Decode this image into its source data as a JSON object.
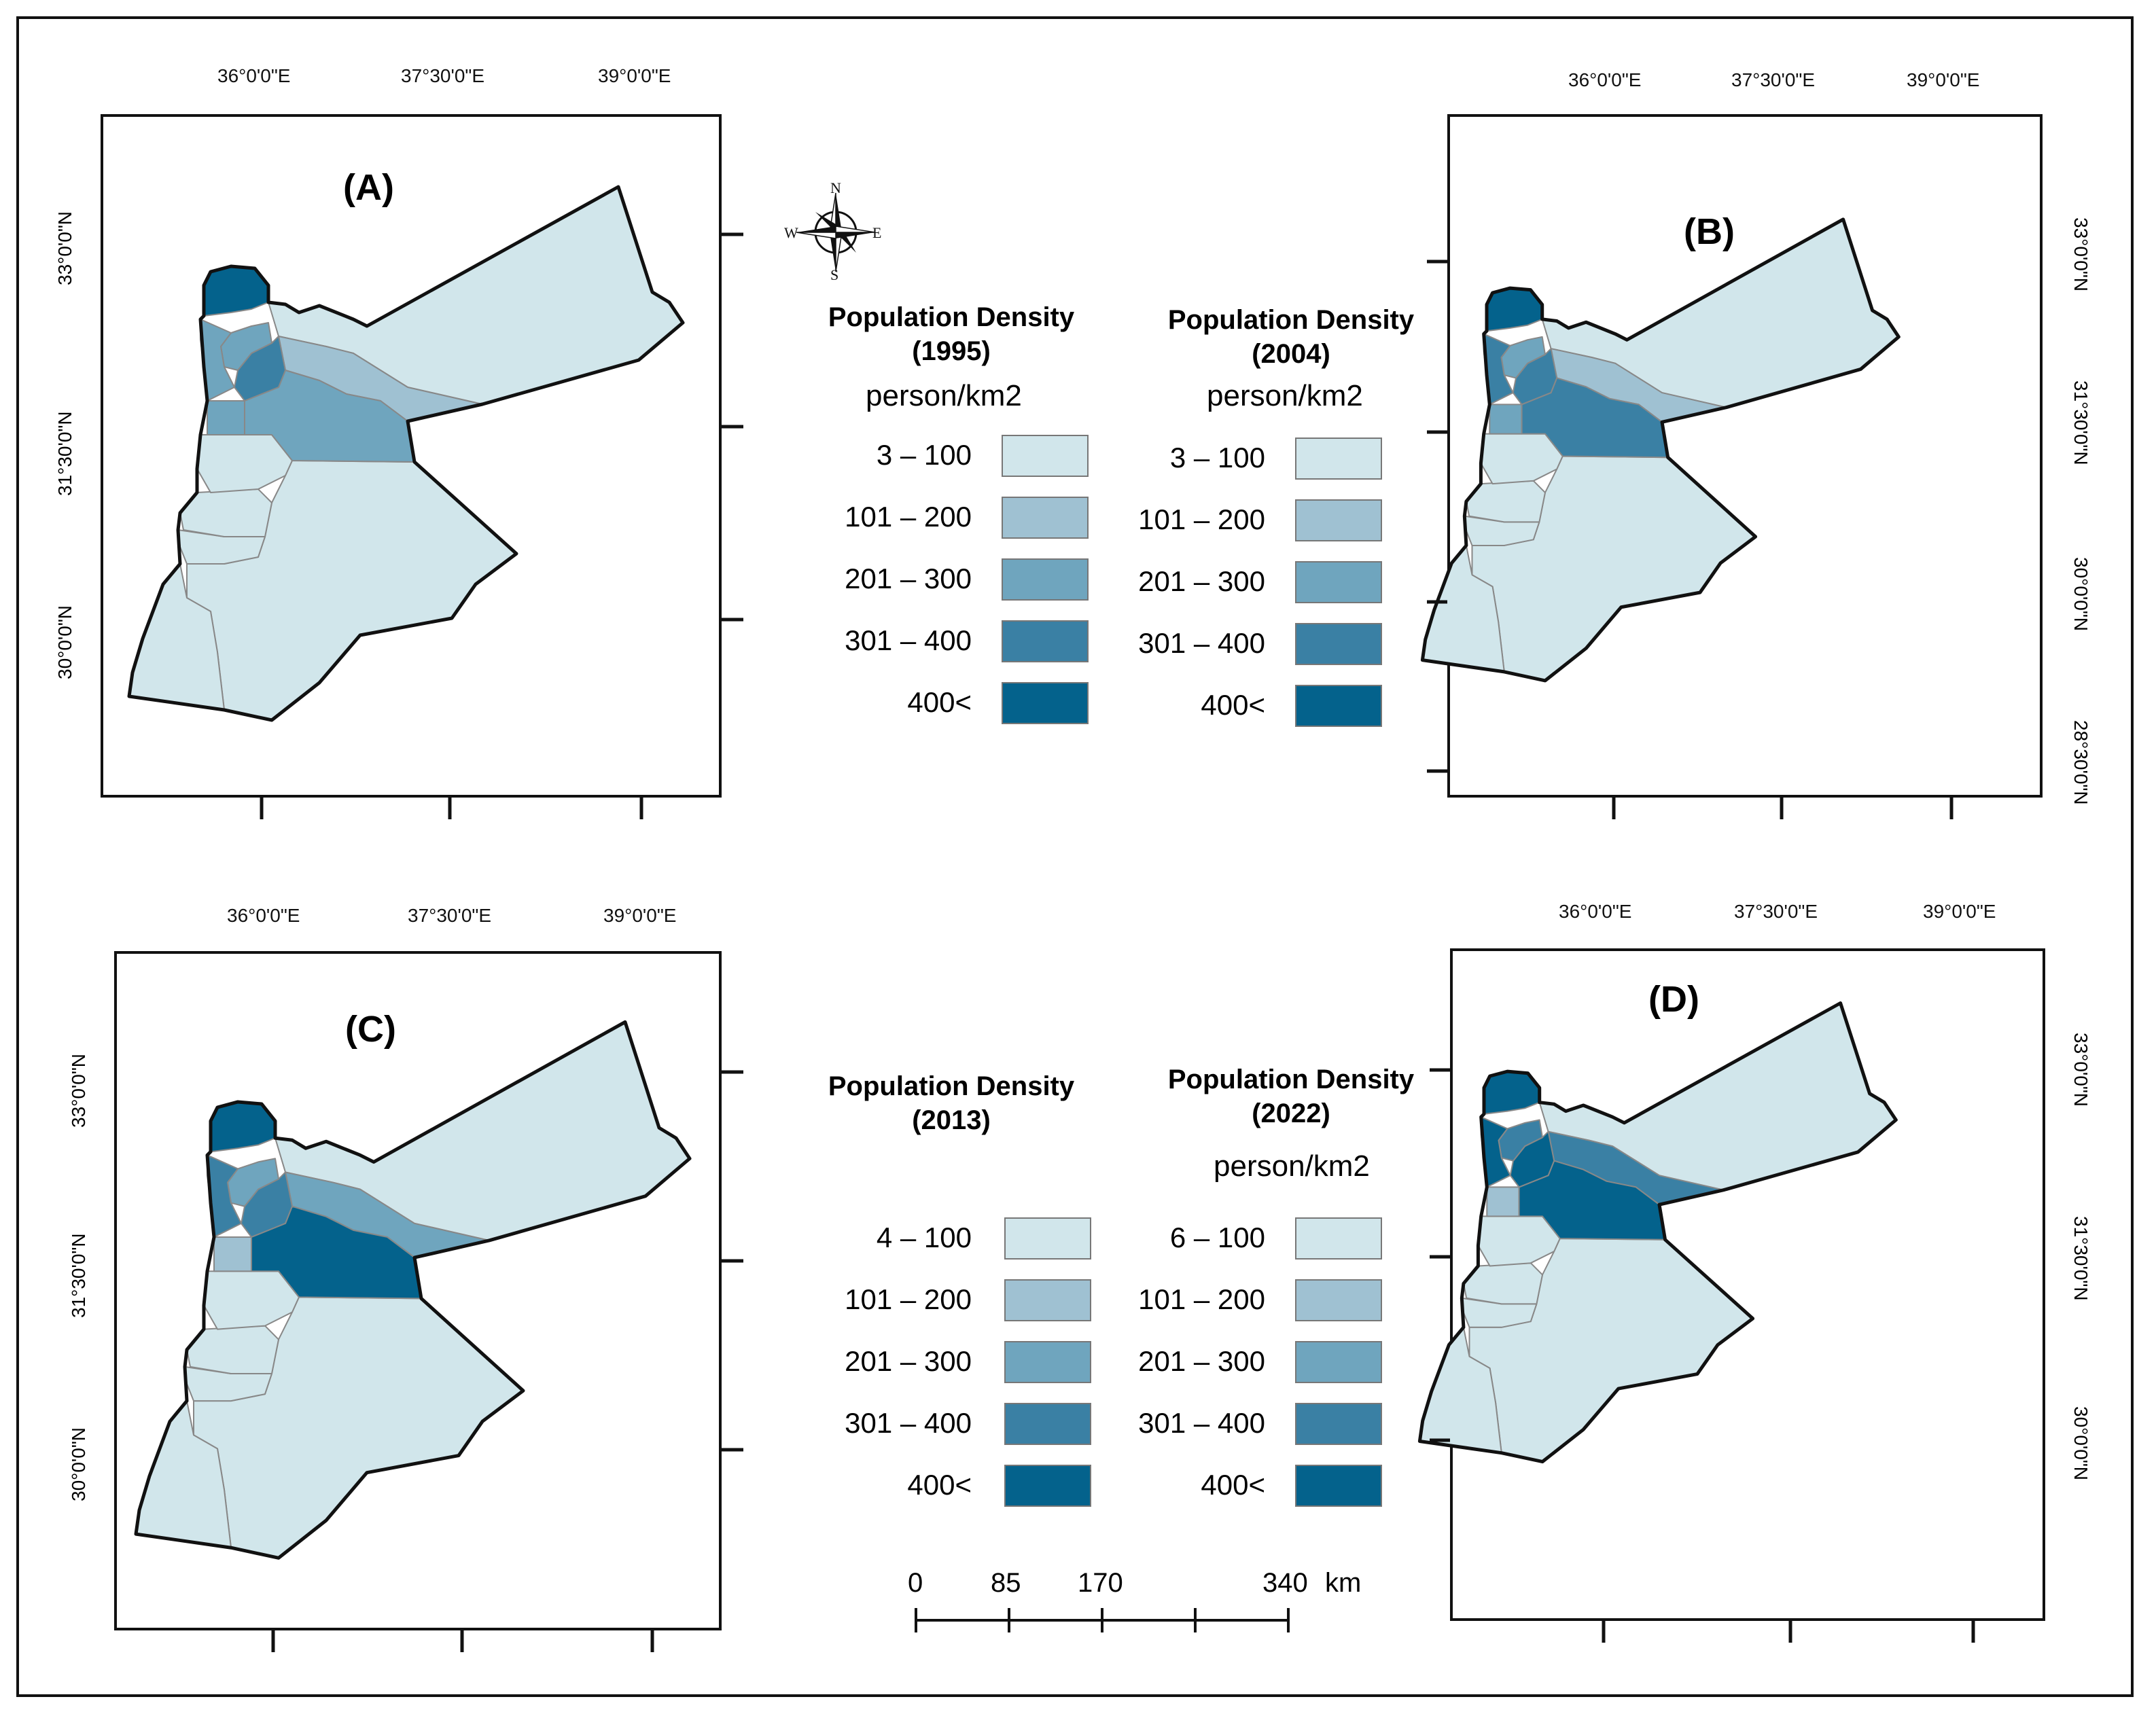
{
  "colors": {
    "class1": "#d1e6eb",
    "class2": "#9fc1d2",
    "class3": "#6fa5be",
    "class4": "#3a80a4",
    "class5": "#04628c",
    "outline": "#111111",
    "district": "#888888"
  },
  "panels": [
    {
      "id": "A",
      "label": "(A)",
      "top_ticks": [
        "36°0'0\"E",
        "37°30'0\"E",
        "39°0'0\"E"
      ],
      "lat_ticks": [
        "33°0'0\"N",
        "31°30'0\"N",
        "30°0'0\"N"
      ],
      "region_classes": {
        "north": 5,
        "irbid_w": 3,
        "ajloun": 3,
        "jerash": 4,
        "balqa": 3,
        "amman": 3,
        "zarqa": 2,
        "mafraq": 1,
        "madaba": 1,
        "karak": 1,
        "tafilah": 1,
        "maan": 1,
        "aqaba": 1
      }
    },
    {
      "id": "B",
      "label": "(B)",
      "top_ticks": [
        "36°0'0\"E",
        "37°30'0\"E",
        "39°0'0\"E"
      ],
      "lat_ticks": [
        "33°0'0\"N",
        "31°30'0\"N",
        "30°0'0\"N",
        "28°30'0\"N"
      ],
      "region_classes": {
        "north": 5,
        "irbid_w": 4,
        "ajloun": 3,
        "jerash": 4,
        "balqa": 3,
        "amman": 4,
        "zarqa": 2,
        "mafraq": 1,
        "madaba": 1,
        "karak": 1,
        "tafilah": 1,
        "maan": 1,
        "aqaba": 1
      }
    },
    {
      "id": "C",
      "label": "(C)",
      "top_ticks": [
        "36°0'0\"E",
        "37°30'0\"E",
        "39°0'0\"E"
      ],
      "lat_ticks": [
        "33°0'0\"N",
        "31°30'0\"N",
        "30°0'0\"N"
      ],
      "region_classes": {
        "north": 5,
        "irbid_w": 4,
        "ajloun": 3,
        "jerash": 4,
        "balqa": 2,
        "amman": 5,
        "zarqa": 3,
        "mafraq": 1,
        "madaba": 1,
        "karak": 1,
        "tafilah": 1,
        "maan": 1,
        "aqaba": 1
      }
    },
    {
      "id": "D",
      "label": "(D)",
      "top_ticks": [
        "36°0'0\"E",
        "37°30'0\"E",
        "39°0'0\"E"
      ],
      "lat_ticks": [
        "33°0'0\"N",
        "31°30'0\"N",
        "30°0'0\"N"
      ],
      "region_classes": {
        "north": 5,
        "irbid_w": 5,
        "ajloun": 4,
        "jerash": 5,
        "balqa": 2,
        "amman": 5,
        "zarqa": 4,
        "mafraq": 1,
        "madaba": 1,
        "karak": 1,
        "tafilah": 1,
        "maan": 1,
        "aqaba": 1
      }
    }
  ],
  "compass": {
    "n": "N",
    "s": "S",
    "e": "E",
    "w": "W"
  },
  "legends": [
    {
      "title_line1": "Population Density",
      "title_line2": "(1995)",
      "unit": "person/km2",
      "ranges": [
        "3 – 100",
        "101 – 200",
        "201 – 300",
        "301 – 400",
        "400<"
      ]
    },
    {
      "title_line1": "Population Density",
      "title_line2": "(2004)",
      "unit": "person/km2",
      "ranges": [
        "3 – 100",
        "101 – 200",
        "201 – 300",
        "301 – 400",
        "400<"
      ]
    },
    {
      "title_line1": "Population Density",
      "title_line2": "(2013)",
      "unit": "",
      "ranges": [
        "4 – 100",
        "101 – 200",
        "201 – 300",
        "301 – 400",
        "400<"
      ]
    },
    {
      "title_line1": "Population Density",
      "title_line2": "(2022)",
      "unit": "person/km2",
      "ranges": [
        "6 – 100",
        "101 – 200",
        "201 – 300",
        "301 – 400",
        "400<"
      ]
    }
  ],
  "scale_bar": {
    "labels": [
      "0",
      "85",
      "170",
      "340"
    ],
    "unit": "km"
  }
}
